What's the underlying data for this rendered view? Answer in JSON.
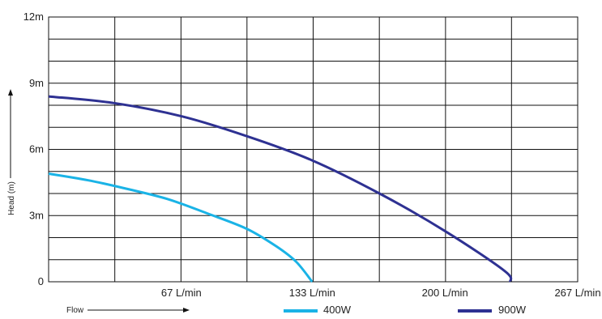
{
  "chart_data": {
    "type": "line",
    "title": "",
    "xlabel": "Flow",
    "ylabel": "Head (m)",
    "xlim": [
      0,
      267
    ],
    "ylim": [
      0,
      12
    ],
    "x_ticks": [
      67,
      133,
      200,
      267
    ],
    "x_tick_labels": [
      "67 L/min",
      "133 L/min",
      "200 L/min",
      "267 L/min"
    ],
    "y_ticks": [
      0,
      3,
      6,
      9,
      12
    ],
    "y_tick_labels": [
      "0",
      "3m",
      "6m",
      "9m",
      "12m"
    ],
    "grid": true,
    "x_gridlines": [
      33.4,
      66.8,
      100.1,
      133.5,
      166.9,
      200.3,
      233.6,
      267
    ],
    "y_gridlines": [
      1,
      2,
      3,
      4,
      5,
      6,
      7,
      8,
      9,
      10,
      11,
      12
    ],
    "legend_position": "bottom",
    "series": [
      {
        "name": "400W",
        "color": "#1ab3e6",
        "points": [
          [
            0,
            4.9
          ],
          [
            20,
            4.6
          ],
          [
            40,
            4.2
          ],
          [
            60,
            3.75
          ],
          [
            80,
            3.1
          ],
          [
            100,
            2.4
          ],
          [
            115,
            1.6
          ],
          [
            125,
            0.9
          ],
          [
            133,
            0
          ]
        ]
      },
      {
        "name": "900W",
        "color": "#2e3192",
        "points": [
          [
            0,
            8.4
          ],
          [
            33,
            8.1
          ],
          [
            67,
            7.5
          ],
          [
            100,
            6.6
          ],
          [
            133,
            5.5
          ],
          [
            167,
            4.0
          ],
          [
            200,
            2.3
          ],
          [
            230,
            0.5
          ],
          [
            233,
            0
          ]
        ]
      }
    ]
  }
}
